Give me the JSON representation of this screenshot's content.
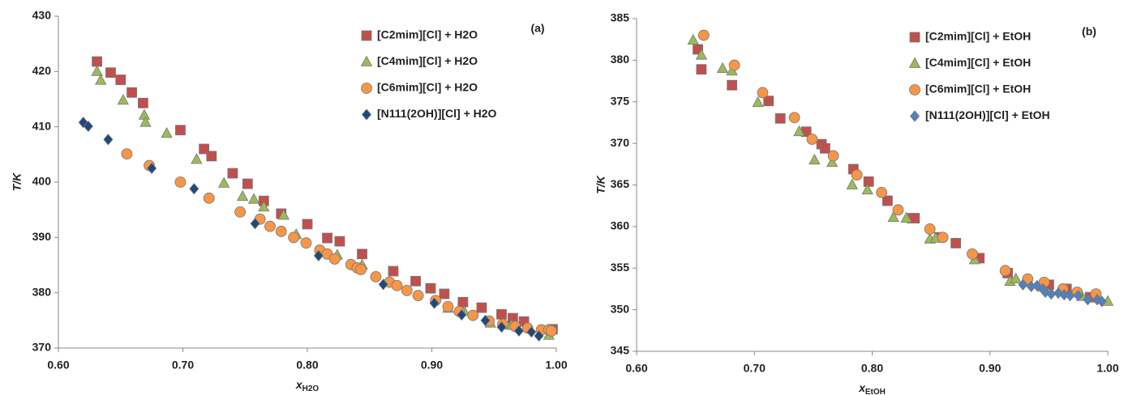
{
  "chart_data": [
    {
      "type": "scatter",
      "annotation": "(a)",
      "ylabel": "T/K",
      "xlabel": {
        "main": "x",
        "sub": "H2O"
      },
      "xlim": [
        0.6,
        1.0
      ],
      "xticks": [
        {
          "value": 0.6,
          "label": "0.60"
        },
        {
          "value": 0.7,
          "label": "0.70"
        },
        {
          "value": 0.8,
          "label": "0.80"
        },
        {
          "value": 0.9,
          "label": "0.90"
        },
        {
          "value": 1.0,
          "label": "1.00"
        }
      ],
      "ylim": [
        370,
        430
      ],
      "yticks": [
        370,
        380,
        390,
        400,
        410,
        420,
        430
      ],
      "grid": false,
      "legend": "upper right",
      "series": [
        {
          "name": "[C2mim][Cl] + H2O",
          "color": "#c0504d",
          "marker": "square",
          "x": [
            0.631,
            0.642,
            0.65,
            0.659,
            0.668,
            0.698,
            0.717,
            0.723,
            0.74,
            0.752,
            0.765,
            0.779,
            0.8,
            0.816,
            0.826,
            0.844,
            0.869,
            0.887,
            0.899,
            0.91,
            0.925,
            0.94,
            0.956,
            0.965,
            0.974,
            0.997
          ],
          "values": [
            421.8,
            419.8,
            418.5,
            416.2,
            414.3,
            409.4,
            406.0,
            404.7,
            401.6,
            399.7,
            396.6,
            394.3,
            392.4,
            389.9,
            389.3,
            387.0,
            383.9,
            382.1,
            380.8,
            379.8,
            378.3,
            377.3,
            376.1,
            375.4,
            374.8,
            373.4
          ]
        },
        {
          "name": "[C4mim][Cl] + H2O",
          "color": "#9bbb59",
          "marker": "triangle",
          "x": [
            0.631,
            0.634,
            0.652,
            0.669,
            0.67,
            0.687,
            0.711,
            0.733,
            0.748,
            0.757,
            0.765,
            0.781,
            0.791,
            0.824,
            0.844,
            0.913,
            0.926,
            0.947,
            0.964,
            0.994
          ],
          "values": [
            420.0,
            418.4,
            414.8,
            412.1,
            410.8,
            408.8,
            404.1,
            399.8,
            397.4,
            396.9,
            395.5,
            394.0,
            390.5,
            386.8,
            385.0,
            377.2,
            376.6,
            374.5,
            374.1,
            372.3
          ]
        },
        {
          "name": "[C6mim][Cl] + H2O",
          "color": "#f79646",
          "marker": "circle",
          "x": [
            0.655,
            0.673,
            0.698,
            0.721,
            0.746,
            0.762,
            0.77,
            0.779,
            0.789,
            0.799,
            0.81,
            0.816,
            0.822,
            0.835,
            0.84,
            0.843,
            0.855,
            0.866,
            0.872,
            0.88,
            0.889,
            0.903,
            0.913,
            0.922,
            0.933,
            0.946,
            0.957,
            0.967,
            0.977,
            0.988,
            0.994,
            0.996
          ],
          "values": [
            405.1,
            403.0,
            400.0,
            397.1,
            394.6,
            393.3,
            392.0,
            391.1,
            390.0,
            389.0,
            387.7,
            387.0,
            386.1,
            385.1,
            384.5,
            384.2,
            382.9,
            381.9,
            381.3,
            380.4,
            379.5,
            378.6,
            377.5,
            376.6,
            375.9,
            374.9,
            374.3,
            373.9,
            373.6,
            373.3,
            373.3,
            373.1
          ]
        },
        {
          "name": "[N111(2OH)][Cl] + H2O",
          "color": "#1f497d",
          "marker": "diamond",
          "x": [
            0.62,
            0.624,
            0.64,
            0.675,
            0.709,
            0.758,
            0.809,
            0.861,
            0.902,
            0.924,
            0.943,
            0.956,
            0.97,
            0.98,
            0.986
          ],
          "values": [
            410.8,
            410.1,
            407.7,
            402.5,
            398.8,
            392.5,
            386.7,
            381.5,
            378.1,
            376.0,
            375.0,
            373.8,
            373.1,
            372.9,
            372.2
          ]
        }
      ]
    },
    {
      "type": "scatter",
      "annotation": "(b)",
      "ylabel": "T/K",
      "xlabel": {
        "main": "x",
        "sub": "EtOH"
      },
      "xlim": [
        0.6,
        1.0
      ],
      "xticks": [
        {
          "value": 0.6,
          "label": "0.60"
        },
        {
          "value": 0.7,
          "label": "0.70"
        },
        {
          "value": 0.8,
          "label": "0.80"
        },
        {
          "value": 0.9,
          "label": "0.90"
        },
        {
          "value": 1.0,
          "label": "1.00"
        }
      ],
      "ylim": [
        345,
        385
      ],
      "yticks": [
        345,
        350,
        355,
        360,
        365,
        370,
        375,
        380,
        385
      ],
      "grid": false,
      "legend": "upper right",
      "series": [
        {
          "name": "[C2mim][Cl] + EtOH",
          "color": "#c0504d",
          "marker": "square",
          "x": [
            0.652,
            0.655,
            0.681,
            0.712,
            0.722,
            0.744,
            0.757,
            0.76,
            0.784,
            0.797,
            0.813,
            0.834,
            0.836,
            0.857,
            0.871,
            0.891,
            0.915,
            0.95,
            0.965,
            0.985
          ],
          "values": [
            381.3,
            378.9,
            377.0,
            375.1,
            373.0,
            371.4,
            369.9,
            369.4,
            366.9,
            365.4,
            363.1,
            361.0,
            361.0,
            358.7,
            358.0,
            356.2,
            354.4,
            353.0,
            352.5,
            351.5
          ]
        },
        {
          "name": "[C4mim][Cl] + EtOH",
          "color": "#9bbb59",
          "marker": "triangle",
          "x": [
            0.648,
            0.655,
            0.673,
            0.681,
            0.703,
            0.738,
            0.751,
            0.766,
            0.783,
            0.796,
            0.818,
            0.829,
            0.849,
            0.854,
            0.887,
            0.917,
            0.922,
            0.945,
            0.978,
            1.0
          ],
          "values": [
            382.4,
            380.6,
            379.0,
            378.7,
            374.9,
            371.4,
            368.0,
            367.7,
            365.0,
            364.4,
            361.1,
            361.0,
            358.5,
            358.6,
            356.0,
            353.4,
            353.7,
            352.7,
            351.6,
            351.0
          ]
        },
        {
          "name": "[C6mim][Cl] + EtOH",
          "color": "#f79646",
          "marker": "circle",
          "x": [
            0.657,
            0.683,
            0.707,
            0.734,
            0.749,
            0.767,
            0.787,
            0.808,
            0.822,
            0.849,
            0.86,
            0.885,
            0.913,
            0.932,
            0.946,
            0.962,
            0.974,
            0.99
          ],
          "values": [
            383.0,
            379.4,
            376.1,
            373.1,
            370.5,
            368.5,
            366.2,
            364.1,
            362.0,
            359.7,
            358.7,
            356.7,
            354.7,
            353.7,
            353.3,
            352.5,
            352.1,
            351.9
          ]
        },
        {
          "name": "[N111(2OH)][Cl] + EtOH",
          "color": "#4f81bd",
          "marker": "diamond",
          "x": [
            0.928,
            0.935,
            0.94,
            0.945,
            0.947,
            0.952,
            0.958,
            0.963,
            0.968,
            0.975,
            0.983,
            0.991,
            0.995
          ],
          "values": [
            353.0,
            352.8,
            352.9,
            352.5,
            352.1,
            351.9,
            352.0,
            351.8,
            351.7,
            351.7,
            351.2,
            351.2,
            351.0
          ]
        }
      ]
    }
  ]
}
